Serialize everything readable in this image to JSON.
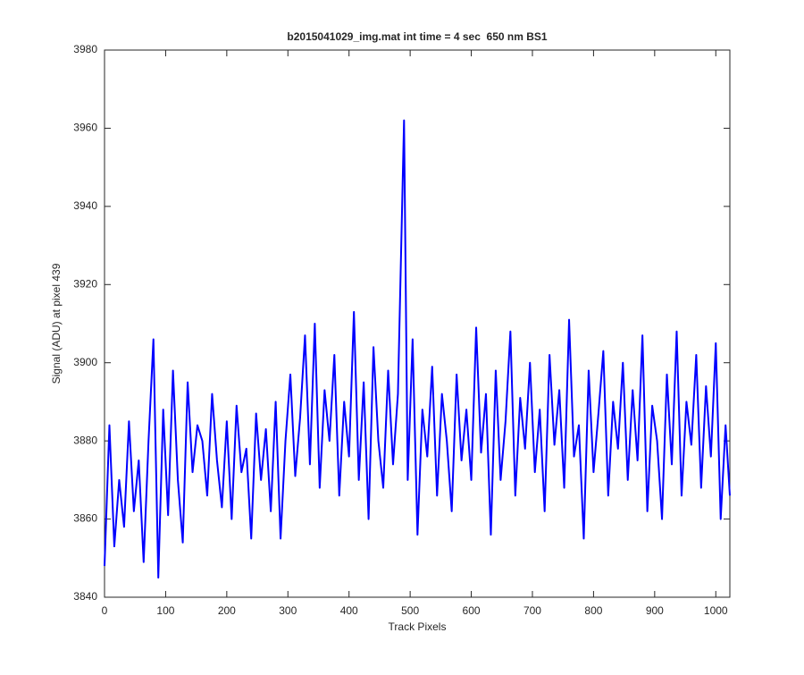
{
  "chart_data": {
    "type": "line",
    "title": "b2015041029_img.mat int time = 4 sec  650 nm BS1",
    "xlabel": "Track Pixels",
    "ylabel": "Signal (ADU) at pixel 439",
    "xlim": [
      0,
      1023
    ],
    "ylim": [
      3840,
      3980
    ],
    "xticks": [
      0,
      100,
      200,
      300,
      400,
      500,
      600,
      700,
      800,
      900,
      1000
    ],
    "yticks": [
      3840,
      3860,
      3880,
      3900,
      3920,
      3940,
      3960,
      3980
    ],
    "series": [
      {
        "color": "#0000ff",
        "x": [
          0,
          8,
          16,
          24,
          32,
          40,
          48,
          56,
          64,
          72,
          80,
          88,
          96,
          104,
          112,
          120,
          128,
          136,
          144,
          152,
          160,
          168,
          176,
          184,
          192,
          200,
          208,
          216,
          224,
          232,
          240,
          248,
          256,
          264,
          272,
          280,
          288,
          296,
          304,
          312,
          320,
          328,
          336,
          344,
          352,
          360,
          368,
          376,
          384,
          392,
          400,
          408,
          416,
          424,
          432,
          440,
          448,
          456,
          464,
          472,
          480,
          490,
          496,
          504,
          512,
          520,
          528,
          536,
          544,
          552,
          560,
          568,
          576,
          584,
          592,
          600,
          608,
          616,
          624,
          632,
          640,
          648,
          656,
          664,
          672,
          680,
          688,
          696,
          704,
          712,
          720,
          728,
          736,
          744,
          752,
          760,
          768,
          776,
          784,
          792,
          800,
          808,
          816,
          824,
          832,
          840,
          848,
          856,
          864,
          872,
          880,
          888,
          896,
          904,
          912,
          920,
          928,
          936,
          944,
          952,
          960,
          968,
          976,
          984,
          992,
          1000,
          1008,
          1016,
          1023
        ],
        "values": [
          3848,
          3884,
          3853,
          3870,
          3858,
          3885,
          3862,
          3875,
          3849,
          3880,
          3906,
          3845,
          3888,
          3861,
          3898,
          3870,
          3854,
          3895,
          3872,
          3884,
          3880,
          3866,
          3892,
          3875,
          3863,
          3885,
          3860,
          3889,
          3872,
          3878,
          3855,
          3887,
          3870,
          3883,
          3862,
          3890,
          3855,
          3880,
          3897,
          3871,
          3886,
          3907,
          3874,
          3910,
          3868,
          3893,
          3880,
          3902,
          3866,
          3890,
          3876,
          3913,
          3870,
          3895,
          3860,
          3904,
          3880,
          3868,
          3898,
          3874,
          3892,
          3962,
          3870,
          3906,
          3856,
          3888,
          3876,
          3899,
          3866,
          3892,
          3880,
          3862,
          3897,
          3875,
          3888,
          3870,
          3909,
          3877,
          3892,
          3856,
          3898,
          3870,
          3885,
          3908,
          3866,
          3891,
          3878,
          3900,
          3872,
          3888,
          3862,
          3902,
          3879,
          3893,
          3868,
          3911,
          3876,
          3884,
          3855,
          3898,
          3872,
          3887,
          3903,
          3866,
          3890,
          3878,
          3900,
          3870,
          3893,
          3875,
          3907,
          3862,
          3889,
          3880,
          3860,
          3897,
          3874,
          3908,
          3866,
          3890,
          3879,
          3902,
          3868,
          3894,
          3876,
          3905,
          3860,
          3884,
          3866
        ]
      }
    ],
    "grid": false
  }
}
